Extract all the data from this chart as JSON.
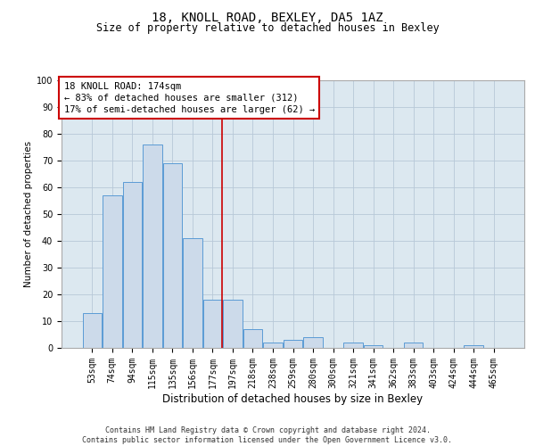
{
  "title1": "18, KNOLL ROAD, BEXLEY, DA5 1AZ",
  "title2": "Size of property relative to detached houses in Bexley",
  "xlabel": "Distribution of detached houses by size in Bexley",
  "ylabel": "Number of detached properties",
  "bar_labels": [
    "53sqm",
    "74sqm",
    "94sqm",
    "115sqm",
    "135sqm",
    "156sqm",
    "177sqm",
    "197sqm",
    "218sqm",
    "238sqm",
    "259sqm",
    "280sqm",
    "300sqm",
    "321sqm",
    "341sqm",
    "362sqm",
    "383sqm",
    "403sqm",
    "424sqm",
    "444sqm",
    "465sqm"
  ],
  "bar_values": [
    13,
    57,
    62,
    76,
    69,
    41,
    18,
    18,
    7,
    2,
    3,
    4,
    0,
    2,
    1,
    0,
    2,
    0,
    0,
    1,
    0
  ],
  "bar_color": "#ccdaea",
  "bar_edge_color": "#5b9bd5",
  "grid_color": "#b8c8d8",
  "bg_color": "#dce8f0",
  "vline_x_index": 6,
  "vline_color": "#cc0000",
  "annotation_text": "18 KNOLL ROAD: 174sqm\n← 83% of detached houses are smaller (312)\n17% of semi-detached houses are larger (62) →",
  "annotation_box_color": "#ffffff",
  "annotation_box_edge": "#cc0000",
  "footer_line1": "Contains HM Land Registry data © Crown copyright and database right 2024.",
  "footer_line2": "Contains public sector information licensed under the Open Government Licence v3.0.",
  "ylim": [
    0,
    100
  ],
  "yticks": [
    0,
    10,
    20,
    30,
    40,
    50,
    60,
    70,
    80,
    90,
    100
  ],
  "title1_fontsize": 10,
  "title2_fontsize": 8.5,
  "ylabel_fontsize": 7.5,
  "xlabel_fontsize": 8.5,
  "tick_fontsize": 7,
  "annotation_fontsize": 7.5,
  "footer_fontsize": 6
}
